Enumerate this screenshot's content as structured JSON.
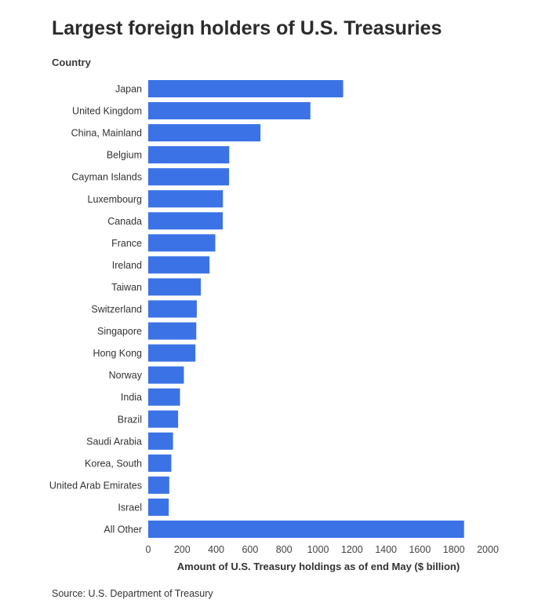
{
  "chart_data": {
    "type": "bar",
    "orientation": "horizontal",
    "title": "Largest foreign holders of U.S. Treasuries",
    "ylabel": "Country",
    "xlabel": "Amount of U.S. Treasury holdings as of end May ($ billion)",
    "categories": [
      "Japan",
      "United Kingdom",
      "China, Mainland",
      "Belgium",
      "Cayman Islands",
      "Luxembourg",
      "Canada",
      "France",
      "Ireland",
      "Taiwan",
      "Switzerland",
      "Singapore",
      "Hong Kong",
      "Norway",
      "India",
      "Brazil",
      "Saudi Arabia",
      "Korea, South",
      "United Arab Emirates",
      "Israel",
      "All Other"
    ],
    "values": [
      1148,
      955,
      661,
      477,
      476,
      440,
      439,
      395,
      361,
      310,
      286,
      283,
      278,
      210,
      187,
      176,
      146,
      136,
      124,
      121,
      1860
    ],
    "xlim": [
      0,
      2000
    ],
    "xticks": [
      "0",
      "200",
      "400",
      "600",
      "800",
      "1000",
      "1200",
      "1400",
      "1600",
      "1800",
      "2000"
    ],
    "bar_color": "#3b73e6",
    "grid": false,
    "legend": "none"
  },
  "source": "Source: U.S. Department of Treasury"
}
